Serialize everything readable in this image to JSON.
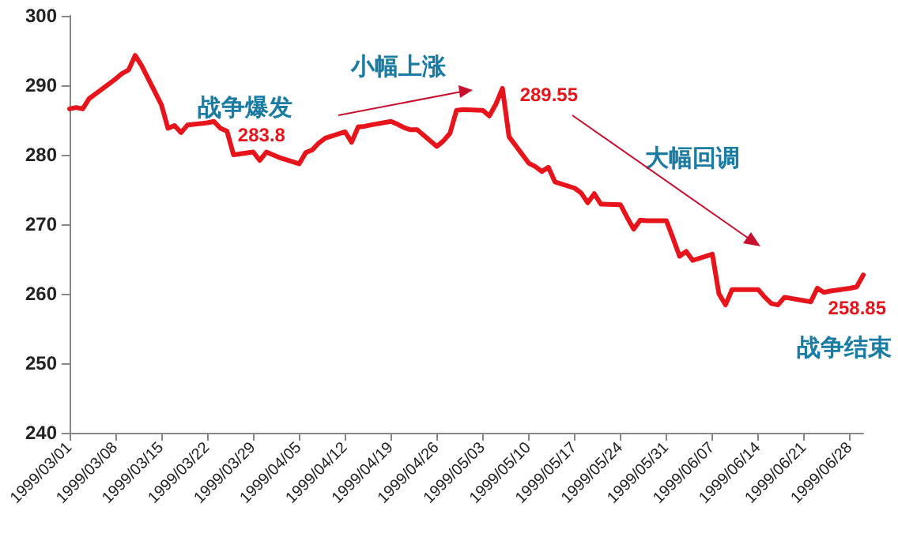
{
  "chart_data": {
    "type": "line",
    "color": "#e8141b",
    "x": [
      "1999-03-01",
      "1999-03-02",
      "1999-03-03",
      "1999-03-04",
      "1999-03-05",
      "1999-03-08",
      "1999-03-09",
      "1999-03-10",
      "1999-03-11",
      "1999-03-12",
      "1999-03-15",
      "1999-03-16",
      "1999-03-17",
      "1999-03-18",
      "1999-03-19",
      "1999-03-22",
      "1999-03-23",
      "1999-03-24",
      "1999-03-25",
      "1999-03-26",
      "1999-03-29",
      "1999-03-30",
      "1999-03-31",
      "1999-04-01",
      "1999-04-02",
      "1999-04-05",
      "1999-04-06",
      "1999-04-07",
      "1999-04-08",
      "1999-04-09",
      "1999-04-12",
      "1999-04-13",
      "1999-04-14",
      "1999-04-15",
      "1999-04-16",
      "1999-04-19",
      "1999-04-20",
      "1999-04-21",
      "1999-04-22",
      "1999-04-23",
      "1999-04-26",
      "1999-04-27",
      "1999-04-28",
      "1999-04-29",
      "1999-04-30",
      "1999-05-03",
      "1999-05-04",
      "1999-05-05",
      "1999-05-06",
      "1999-05-07",
      "1999-05-10",
      "1999-05-11",
      "1999-05-12",
      "1999-05-13",
      "1999-05-14",
      "1999-05-17",
      "1999-05-18",
      "1999-05-19",
      "1999-05-20",
      "1999-05-21",
      "1999-05-24",
      "1999-05-25",
      "1999-05-26",
      "1999-05-27",
      "1999-05-28",
      "1999-05-31",
      "1999-06-01",
      "1999-06-02",
      "1999-06-03",
      "1999-06-04",
      "1999-06-07",
      "1999-06-08",
      "1999-06-09",
      "1999-06-10",
      "1999-06-11",
      "1999-06-14",
      "1999-06-15",
      "1999-06-16",
      "1999-06-17",
      "1999-06-18",
      "1999-06-21",
      "1999-06-22",
      "1999-06-23",
      "1999-06-24",
      "1999-06-25",
      "1999-06-28",
      "1999-06-29",
      "1999-06-30"
    ],
    "values": [
      286.6,
      286.8,
      286.6,
      288.1,
      288.8,
      290.9,
      291.7,
      292.2,
      294.3,
      292.8,
      287.2,
      283.8,
      284.2,
      283.2,
      284.3,
      284.6,
      284.8,
      283.8,
      283.4,
      280.0,
      280.4,
      279.2,
      280.4,
      280.0,
      279.6,
      278.7,
      280.3,
      280.7,
      281.7,
      282.4,
      283.3,
      281.8,
      284.0,
      284.1,
      284.3,
      284.8,
      284.4,
      283.9,
      283.6,
      283.6,
      281.2,
      282.0,
      283.1,
      286.4,
      286.5,
      286.4,
      285.6,
      287.3,
      289.55,
      282.6,
      278.8,
      278.3,
      277.6,
      278.2,
      276.1,
      275.2,
      274.5,
      273.1,
      274.4,
      272.9,
      272.8,
      271.0,
      269.3,
      270.6,
      270.5,
      270.5,
      268.0,
      265.4,
      266.1,
      264.8,
      265.7,
      260.0,
      258.4,
      260.6,
      260.6,
      260.6,
      259.5,
      258.6,
      258.4,
      259.5,
      259.0,
      258.85,
      260.8,
      260.2,
      260.4,
      260.8,
      261.0,
      262.7
    ],
    "value_labels": [
      null,
      null,
      null,
      null,
      null,
      null,
      null,
      null,
      null,
      null,
      null,
      null,
      null,
      null,
      null,
      null,
      null,
      "283.8",
      null,
      null,
      null,
      null,
      null,
      null,
      null,
      null,
      null,
      null,
      null,
      null,
      null,
      null,
      null,
      null,
      null,
      null,
      null,
      null,
      null,
      null,
      null,
      null,
      null,
      null,
      null,
      null,
      null,
      null,
      "289.55",
      null,
      null,
      null,
      null,
      null,
      null,
      null,
      null,
      null,
      null,
      null,
      null,
      null,
      null,
      null,
      null,
      null,
      null,
      null,
      null,
      null,
      null,
      null,
      null,
      null,
      null,
      null,
      null,
      null,
      null,
      null,
      null,
      "258.85",
      null,
      null,
      null,
      null,
      null,
      null
    ],
    "xlim": [
      "1999-03-01",
      "1999-06-30"
    ],
    "xticks": [
      {
        "value": "1999-03-01",
        "label": "1999/03/01"
      },
      {
        "value": "1999-03-08",
        "label": "1999/03/08"
      },
      {
        "value": "1999-03-15",
        "label": "1999/03/15"
      },
      {
        "value": "1999-03-22",
        "label": "1999/03/22"
      },
      {
        "value": "1999-03-29",
        "label": "1999/03/29"
      },
      {
        "value": "1999-04-05",
        "label": "1999/04/05"
      },
      {
        "value": "1999-04-12",
        "label": "1999/04/12"
      },
      {
        "value": "1999-04-19",
        "label": "1999/04/19"
      },
      {
        "value": "1999-04-26",
        "label": "1999/04/26"
      },
      {
        "value": "1999-05-03",
        "label": "1999/05/03"
      },
      {
        "value": "1999-05-10",
        "label": "1999/05/10"
      },
      {
        "value": "1999-05-17",
        "label": "1999/05/17"
      },
      {
        "value": "1999-05-24",
        "label": "1999/05/24"
      },
      {
        "value": "1999-05-31",
        "label": "1999/05/31"
      },
      {
        "value": "1999-06-07",
        "label": "1999/06/07"
      },
      {
        "value": "1999-06-14",
        "label": "1999/06/14"
      },
      {
        "value": "1999-06-21",
        "label": "1999/06/21"
      },
      {
        "value": "1999-06-28",
        "label": "1999/06/28"
      }
    ],
    "ylim": [
      240,
      300
    ],
    "yticks": [
      240,
      250,
      260,
      270,
      280,
      290,
      300
    ],
    "annotations": [
      "战争爆发",
      "小幅上涨",
      "大幅回调",
      "战争结束"
    ]
  }
}
